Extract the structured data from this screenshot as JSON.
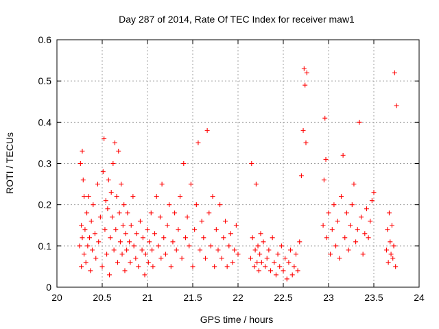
{
  "chart_data": {
    "type": "scatter",
    "title": "Day 287 of 2014, Rate Of TEC Index for receiver maw1",
    "xlabel": "GPS time / hours",
    "ylabel": "ROTI / TECUs",
    "xlim": [
      20,
      24
    ],
    "ylim": [
      0,
      0.6
    ],
    "xticks": [
      "20",
      "20.5",
      "21",
      "21.5",
      "22",
      "22.5",
      "23",
      "23.5",
      "24"
    ],
    "yticks": [
      "0",
      "0.1",
      "0.2",
      "0.3",
      "0.4",
      "0.5",
      "0.6"
    ],
    "grid": true,
    "marker": "plus",
    "color": "#ff0000",
    "series": [
      {
        "x": [
          20.25,
          20.26,
          20.27,
          20.27,
          20.28,
          20.28,
          20.29,
          20.3,
          20.3,
          20.31,
          20.32,
          20.33,
          20.34,
          20.35,
          20.36,
          20.37,
          20.38,
          20.39,
          20.4,
          20.42,
          20.43,
          20.45,
          20.46,
          20.48,
          20.5,
          20.51,
          20.52,
          20.53,
          20.54,
          20.55,
          20.56,
          20.57,
          20.58,
          20.59,
          20.6,
          20.61,
          20.62,
          20.63,
          20.64,
          20.65,
          20.66,
          20.67,
          20.68,
          20.69,
          20.7,
          20.71,
          20.72,
          20.73,
          20.74,
          20.75,
          20.76,
          20.77,
          20.78,
          20.8,
          20.81,
          20.82,
          20.84,
          20.85,
          20.87,
          20.88,
          20.9,
          20.92,
          20.94,
          20.95,
          20.97,
          20.98,
          21.0,
          21.01,
          21.02,
          21.04,
          21.05,
          21.06,
          21.08,
          21.1,
          21.12,
          21.14,
          21.15,
          21.16,
          21.18,
          21.2,
          21.22,
          21.24,
          21.26,
          21.28,
          21.3,
          21.32,
          21.34,
          21.36,
          21.38,
          21.4,
          21.42,
          21.44,
          21.46,
          21.48,
          21.5,
          21.52,
          21.54,
          21.56,
          21.58,
          21.6,
          21.62,
          21.64,
          21.66,
          21.68,
          21.7,
          21.72,
          21.74,
          21.76,
          21.78,
          21.8,
          21.82,
          21.84,
          21.86,
          21.88,
          21.9,
          21.92,
          21.94,
          21.96,
          21.98,
          22.0,
          22.14,
          22.15,
          22.16,
          22.18,
          22.19,
          22.2,
          22.21,
          22.22,
          22.23,
          22.24,
          22.25,
          22.26,
          22.28,
          22.3,
          22.32,
          22.34,
          22.36,
          22.38,
          22.4,
          22.42,
          22.44,
          22.46,
          22.48,
          22.5,
          22.52,
          22.54,
          22.56,
          22.58,
          22.6,
          22.62,
          22.64,
          22.66,
          22.68,
          22.7,
          22.72,
          22.73,
          22.74,
          22.75,
          22.76,
          22.94,
          22.95,
          22.96,
          22.97,
          22.98,
          23.0,
          23.02,
          23.04,
          23.06,
          23.08,
          23.1,
          23.12,
          23.14,
          23.16,
          23.18,
          23.2,
          23.22,
          23.24,
          23.26,
          23.28,
          23.3,
          23.32,
          23.34,
          23.36,
          23.38,
          23.4,
          23.42,
          23.44,
          23.46,
          23.48,
          23.5,
          23.64,
          23.65,
          23.66,
          23.67,
          23.68,
          23.69,
          23.7,
          23.71,
          23.72,
          23.73,
          23.74,
          23.75
        ],
        "y": [
          0.1,
          0.3,
          0.05,
          0.15,
          0.33,
          0.12,
          0.26,
          0.08,
          0.22,
          0.14,
          0.06,
          0.18,
          0.1,
          0.22,
          0.12,
          0.04,
          0.16,
          0.09,
          0.2,
          0.13,
          0.07,
          0.25,
          0.11,
          0.17,
          0.05,
          0.28,
          0.36,
          0.14,
          0.21,
          0.08,
          0.19,
          0.26,
          0.03,
          0.12,
          0.23,
          0.17,
          0.3,
          0.09,
          0.35,
          0.14,
          0.22,
          0.06,
          0.33,
          0.18,
          0.11,
          0.25,
          0.08,
          0.15,
          0.2,
          0.04,
          0.13,
          0.09,
          0.18,
          0.11,
          0.06,
          0.15,
          0.22,
          0.1,
          0.07,
          0.13,
          0.05,
          0.16,
          0.09,
          0.12,
          0.03,
          0.08,
          0.14,
          0.06,
          0.11,
          0.18,
          0.09,
          0.05,
          0.13,
          0.22,
          0.1,
          0.17,
          0.07,
          0.25,
          0.12,
          0.08,
          0.15,
          0.2,
          0.05,
          0.11,
          0.18,
          0.09,
          0.14,
          0.22,
          0.07,
          0.3,
          0.12,
          0.17,
          0.1,
          0.25,
          0.05,
          0.14,
          0.2,
          0.35,
          0.09,
          0.16,
          0.12,
          0.07,
          0.38,
          0.18,
          0.1,
          0.22,
          0.05,
          0.14,
          0.09,
          0.2,
          0.07,
          0.12,
          0.16,
          0.05,
          0.1,
          0.13,
          0.06,
          0.09,
          0.15,
          0.08,
          0.07,
          0.3,
          0.12,
          0.05,
          0.09,
          0.25,
          0.06,
          0.1,
          0.04,
          0.08,
          0.13,
          0.06,
          0.11,
          0.05,
          0.07,
          0.09,
          0.04,
          0.12,
          0.06,
          0.03,
          0.08,
          0.05,
          0.1,
          0.04,
          0.07,
          0.02,
          0.06,
          0.09,
          0.03,
          0.05,
          0.08,
          0.04,
          0.11,
          0.27,
          0.38,
          0.53,
          0.49,
          0.35,
          0.52,
          0.15,
          0.26,
          0.41,
          0.31,
          0.12,
          0.18,
          0.08,
          0.14,
          0.2,
          0.1,
          0.16,
          0.07,
          0.22,
          0.32,
          0.12,
          0.18,
          0.09,
          0.15,
          0.2,
          0.25,
          0.11,
          0.14,
          0.4,
          0.17,
          0.08,
          0.13,
          0.19,
          0.12,
          0.16,
          0.21,
          0.23,
          0.09,
          0.14,
          0.06,
          0.18,
          0.11,
          0.08,
          0.15,
          0.07,
          0.1,
          0.52,
          0.05,
          0.44
        ]
      }
    ]
  }
}
